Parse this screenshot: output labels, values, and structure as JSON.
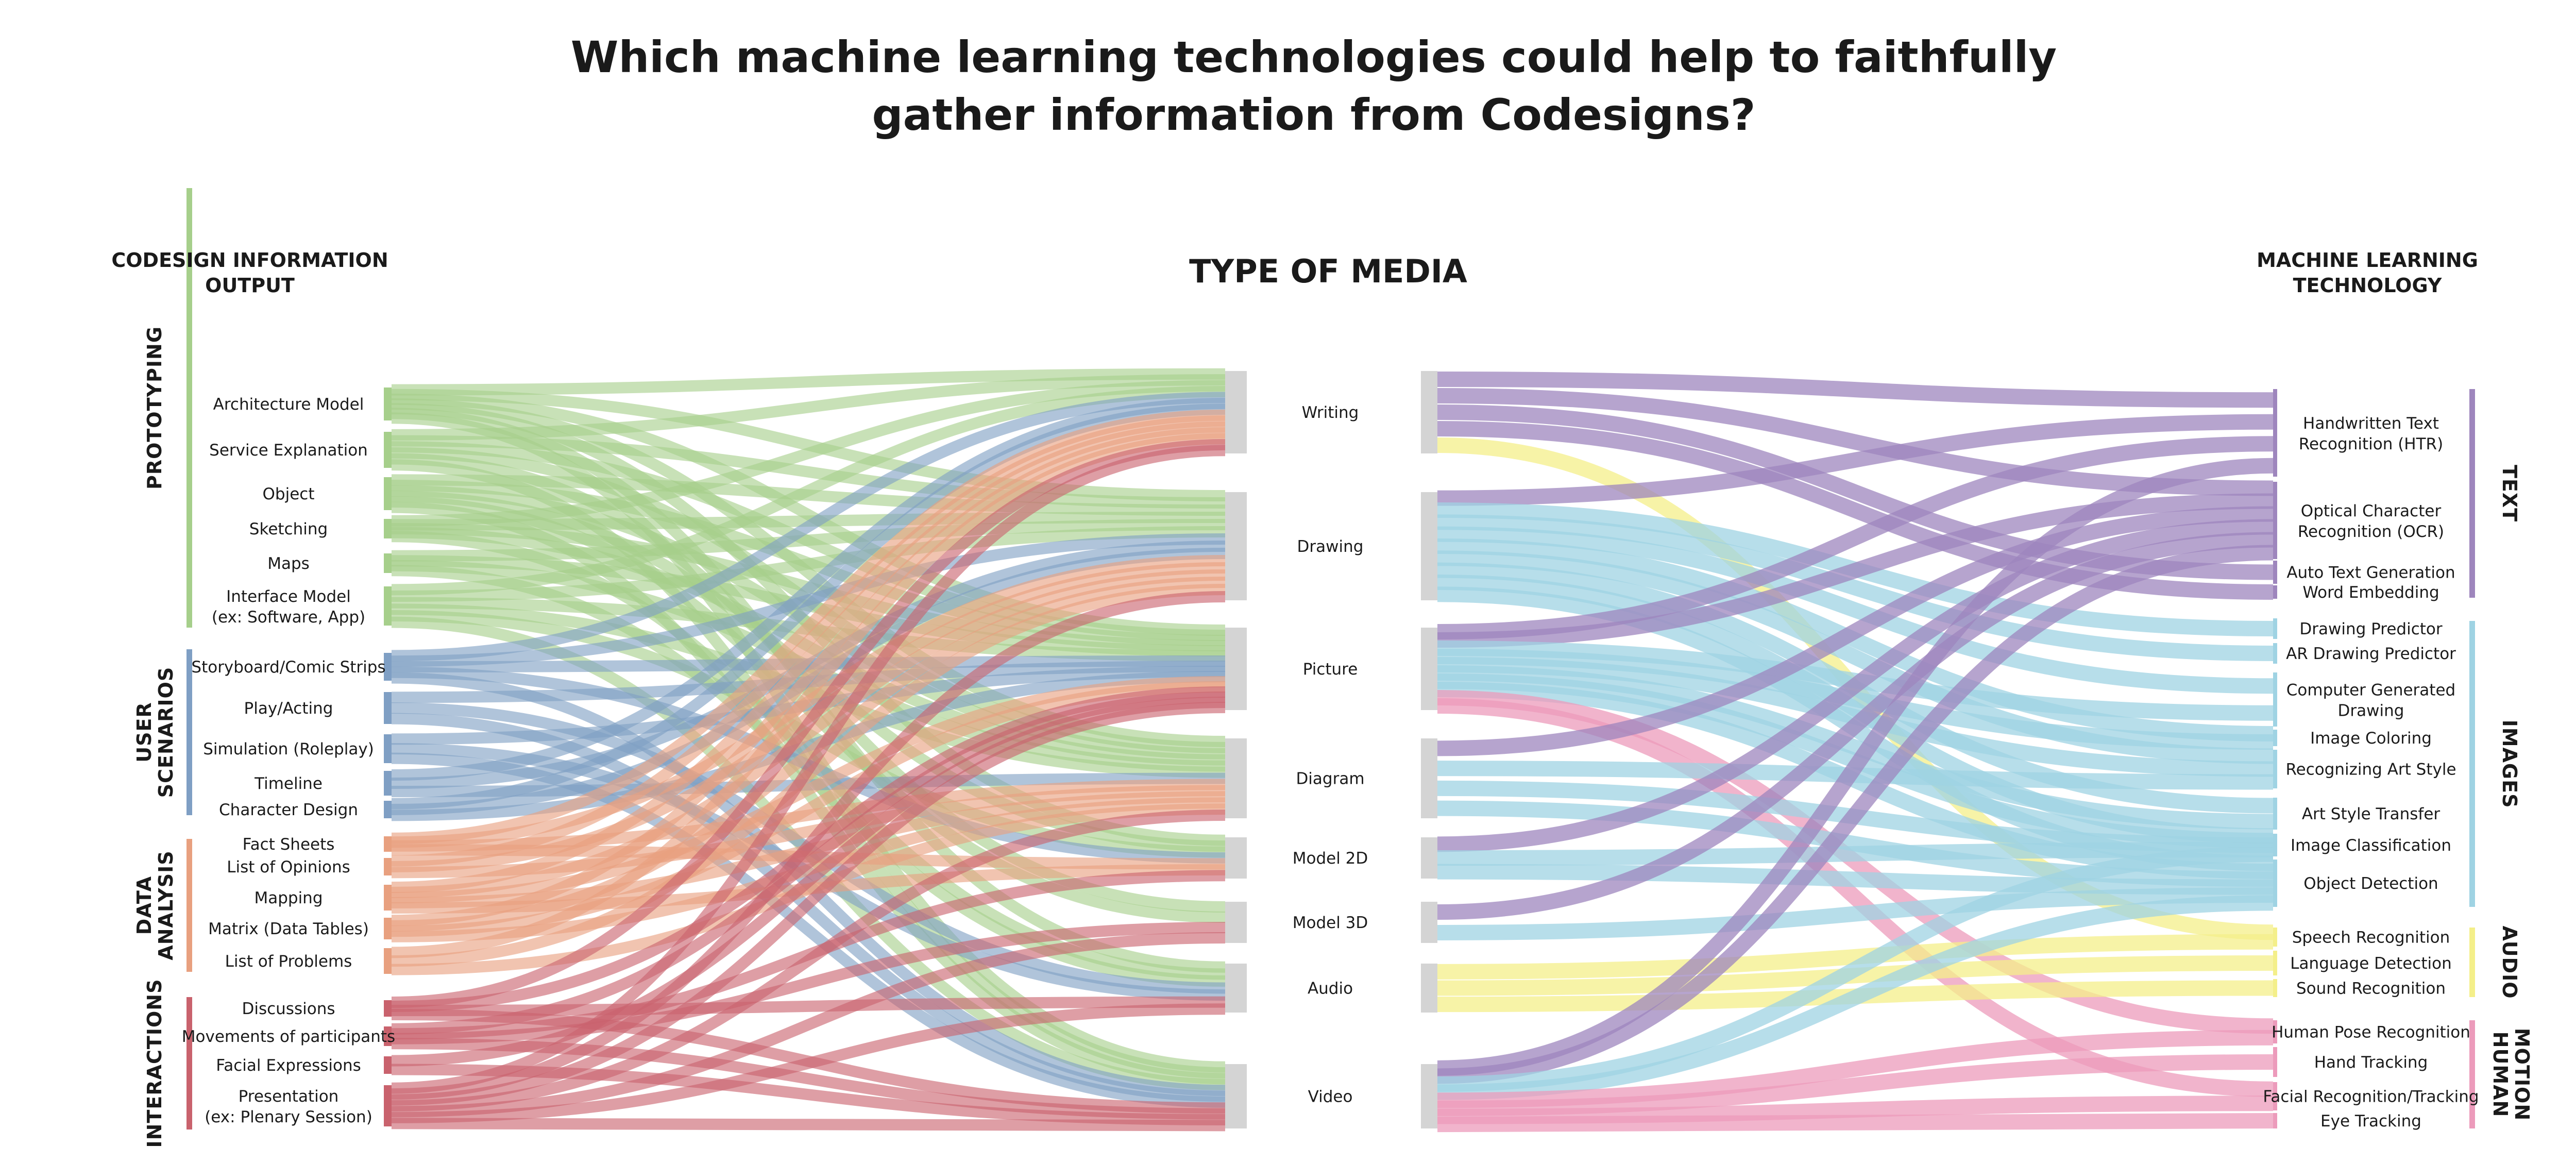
{
  "title": {
    "line1": "Which machine learning technologies could help to faithfully",
    "line2": "gather information from Codesigns?"
  },
  "headers": {
    "left_line1": "CODESIGN INFORMATION",
    "left_line2": "OUTPUT",
    "center": "TYPE OF MEDIA",
    "right_line1": "MACHINE LEARNING",
    "right_line2": "TECHNOLOGY"
  },
  "colors": {
    "prototyping": "#a6cf8b",
    "user_scenarios": "#7f9fc4",
    "data_analysis": "#e8a07f",
    "interactions": "#c9626d",
    "text": "#9e86bd",
    "images": "#9fd3e3",
    "audio": "#f4ef8a",
    "human_motion": "#ec9bbb",
    "media_bar": "#d4d4d4"
  },
  "left_groups": [
    {
      "key": "prototyping",
      "label": "PROTOTYPING",
      "colorKey": "prototyping",
      "items": [
        {
          "label": "Architecture Model"
        },
        {
          "label": "Service Explanation"
        },
        {
          "label": "Object"
        },
        {
          "label": "Sketching"
        },
        {
          "label": "Maps"
        },
        {
          "label": "Interface Model",
          "label2": "(ex: Software, App)"
        }
      ]
    },
    {
      "key": "user_scenarios",
      "label": "USER",
      "label2": "SCENARIOS",
      "colorKey": "user_scenarios",
      "items": [
        {
          "label": "Storyboard/Comic Strips"
        },
        {
          "label": "Play/Acting"
        },
        {
          "label": "Simulation (Roleplay)"
        },
        {
          "label": "Timeline"
        },
        {
          "label": "Character Design"
        }
      ]
    },
    {
      "key": "data_analysis",
      "label": "DATA",
      "label2": "ANALYSIS",
      "colorKey": "data_analysis",
      "items": [
        {
          "label": "Fact Sheets"
        },
        {
          "label": "List of Opinions"
        },
        {
          "label": "Mapping"
        },
        {
          "label": "Matrix (Data Tables)"
        },
        {
          "label": "List of Problems"
        }
      ]
    },
    {
      "key": "interactions",
      "label": "INTERACTIONS",
      "colorKey": "interactions",
      "items": [
        {
          "label": "Discussions"
        },
        {
          "label": "Movements of participants"
        },
        {
          "label": "Facial Expressions"
        },
        {
          "label": "Presentation",
          "label2": "(ex: Plenary Session)"
        }
      ]
    }
  ],
  "media": [
    {
      "label": "Writing"
    },
    {
      "label": "Drawing"
    },
    {
      "label": "Picture"
    },
    {
      "label": "Diagram"
    },
    {
      "label": "Model 2D"
    },
    {
      "label": "Model 3D"
    },
    {
      "label": "Audio"
    },
    {
      "label": "Video"
    }
  ],
  "right_groups": [
    {
      "key": "text",
      "label": "TEXT",
      "colorKey": "text",
      "items": [
        {
          "label": "Handwritten Text",
          "label2": "Recognition (HTR)"
        },
        {
          "label": "Optical Character",
          "label2": "Recognition (OCR)"
        },
        {
          "label": "Auto Text Generation"
        },
        {
          "label": "Word Embedding"
        }
      ]
    },
    {
      "key": "images",
      "label": "IMAGES",
      "colorKey": "images",
      "items": [
        {
          "label": "Drawing Predictor"
        },
        {
          "label": "AR Drawing Predictor"
        },
        {
          "label": "Computer Generated",
          "label2": "Drawing"
        },
        {
          "label": "Image Coloring"
        },
        {
          "label": "Recognizing Art Style"
        },
        {
          "label": "Art Style Transfer"
        },
        {
          "label": "Image Classification"
        },
        {
          "label": "Object Detection"
        }
      ]
    },
    {
      "key": "audio",
      "label": "AUDIO",
      "colorKey": "audio",
      "items": [
        {
          "label": "Speech Recognition"
        },
        {
          "label": "Language Detection"
        },
        {
          "label": "Sound Recognition"
        }
      ]
    },
    {
      "key": "human_motion",
      "label": "HUMAN",
      "label2": "MOTION",
      "colorKey": "human_motion",
      "items": [
        {
          "label": "Human Pose Recognition"
        },
        {
          "label": "Hand Tracking"
        },
        {
          "label": "Facial Recognition/Tracking"
        },
        {
          "label": "Eye Tracking"
        }
      ]
    }
  ]
}
